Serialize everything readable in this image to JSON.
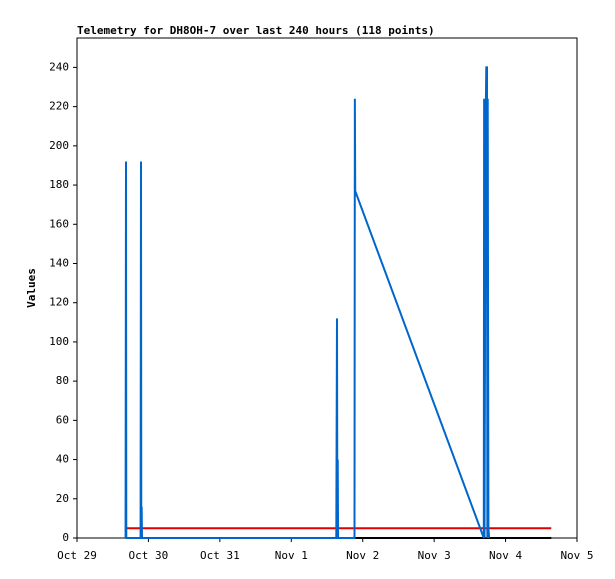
{
  "chart_data": {
    "type": "line",
    "title": "Telemetry for DH8OH-7 over last 240 hours (118 points)",
    "y_label": "Values",
    "xlim": [
      0,
      7
    ],
    "xticks": [
      {
        "value": 0,
        "label": "Oct 29"
      },
      {
        "value": 1,
        "label": "Oct 30"
      },
      {
        "value": 2,
        "label": "Oct 31"
      },
      {
        "value": 3,
        "label": "Nov 1"
      },
      {
        "value": 4,
        "label": "Nov 2"
      },
      {
        "value": 5,
        "label": "Nov 3"
      },
      {
        "value": 6,
        "label": "Nov 4"
      },
      {
        "value": 7,
        "label": "Nov 5"
      }
    ],
    "ylim": [
      0,
      255
    ],
    "yticks": [
      0,
      20,
      40,
      60,
      80,
      100,
      120,
      140,
      160,
      180,
      200,
      220,
      240
    ],
    "series": [
      {
        "color": "#000000",
        "x": [
          0.686,
          6.64
        ],
        "values": [
          0,
          0
        ]
      },
      {
        "color": "#e00000",
        "x": [
          0.686,
          6.64
        ],
        "values": [
          5,
          5
        ]
      },
      {
        "color": "#0066cc",
        "x": [
          0.68,
          0.686,
          0.69,
          0.89,
          0.896,
          0.9,
          0.905,
          0.91,
          3.63,
          3.64,
          3.645,
          3.65,
          3.655,
          3.885,
          3.89,
          3.895,
          5.695,
          5.7,
          5.705,
          5.72,
          5.73,
          5.74,
          5.745,
          5.75,
          5.76,
          5.77
        ],
        "values": [
          0,
          192,
          0,
          0,
          192,
          0,
          16,
          0,
          0,
          112,
          0,
          40,
          0,
          0,
          224,
          177,
          0,
          224,
          0,
          208,
          240,
          240,
          0,
          224,
          5,
          0
        ]
      }
    ]
  }
}
